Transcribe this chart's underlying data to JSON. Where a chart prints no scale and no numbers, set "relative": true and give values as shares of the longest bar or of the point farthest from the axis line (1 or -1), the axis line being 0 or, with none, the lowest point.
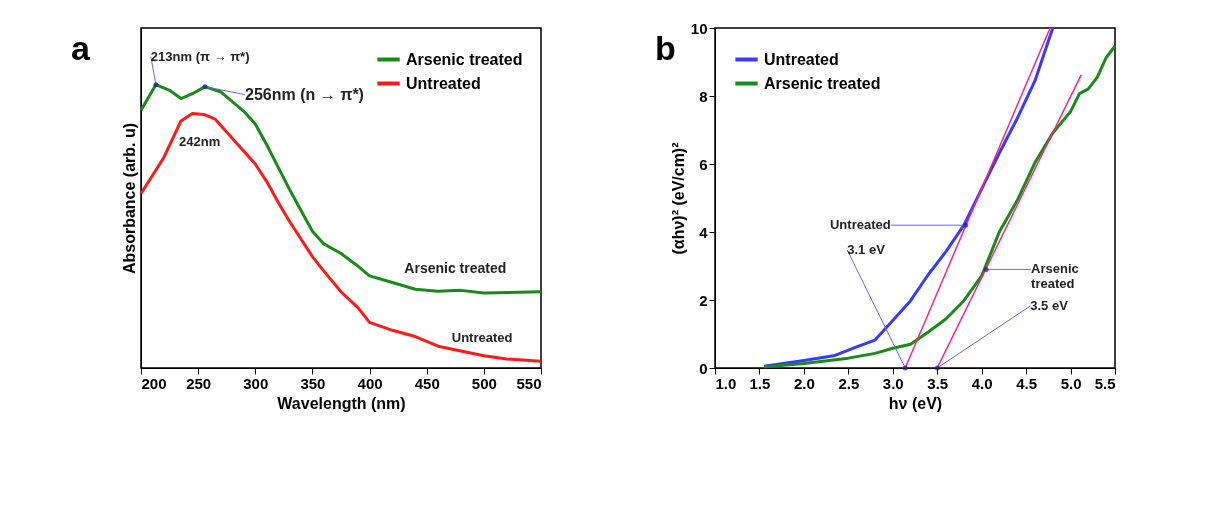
{
  "chart_data": [
    {
      "type": "line",
      "relative": true,
      "xlabel": "Wavelength (nm)",
      "ylabel": "Absorbance (arb. u)",
      "xlim": [
        200,
        550
      ],
      "xticks": [
        200,
        250,
        300,
        350,
        400,
        450,
        500,
        550
      ],
      "legend": "top right",
      "grid": false,
      "series": [
        {
          "name": "Arsenic treated",
          "color": "#1a8a1a",
          "x": [
            200,
            213,
            225,
            235,
            245,
            256,
            270,
            290,
            300,
            310,
            320,
            330,
            340,
            350,
            360,
            375,
            390,
            400,
            420,
            440,
            460,
            480,
            500,
            550
          ],
          "values": [
            0.91,
            1.0,
            0.98,
            0.951,
            0.968,
            0.993,
            0.974,
            0.906,
            0.861,
            0.788,
            0.709,
            0.63,
            0.556,
            0.483,
            0.438,
            0.404,
            0.359,
            0.325,
            0.302,
            0.278,
            0.271,
            0.274,
            0.265,
            0.269
          ]
        },
        {
          "name": "Untreated",
          "color": "#ff1a1a",
          "x": [
            200,
            220,
            235,
            245,
            255,
            265,
            280,
            300,
            310,
            320,
            330,
            350,
            360,
            375,
            390,
            400,
            420,
            440,
            460,
            480,
            500,
            520,
            550
          ],
          "values": [
            0.616,
            0.743,
            0.872,
            0.898,
            0.895,
            0.878,
            0.81,
            0.72,
            0.658,
            0.585,
            0.517,
            0.393,
            0.342,
            0.269,
            0.212,
            0.161,
            0.133,
            0.111,
            0.077,
            0.06,
            0.043,
            0.032,
            0.024
          ]
        }
      ],
      "annotations": [
        "a",
        {
          "text": "213nm (π → π*)",
          "x": 213,
          "y": 1.0
        },
        {
          "text": "256nm (n → π*)",
          "x": 256,
          "y": 0.993
        },
        {
          "text": "242nm",
          "x": 242,
          "y": 0.898
        },
        {
          "text": "Arsenic treated",
          "x": 475,
          "y": 0.272
        },
        {
          "text": "Untreated",
          "x": 525,
          "y": 0.035
        }
      ]
    },
    {
      "type": "line",
      "xlabel": "hν (eV)",
      "ylabel": "(αhν)² (eV/cm)²",
      "xlim": [
        1.0,
        5.5
      ],
      "xticks": [
        {
          "value": 1,
          "label": "1.0"
        },
        1.5,
        {
          "value": 2,
          "label": "2.0"
        },
        2.5,
        {
          "value": 3,
          "label": "3.0"
        },
        3.5,
        {
          "value": 4,
          "label": "4.0"
        },
        4.5,
        {
          "value": 5,
          "label": "5.0"
        },
        5.5
      ],
      "ylim": [
        0,
        10
      ],
      "yticks": [
        0,
        2,
        4,
        6,
        8,
        10
      ],
      "legend": "top left",
      "grid": false,
      "series": [
        {
          "name": "Untreated",
          "color": "#3a3aff",
          "x": [
            1.55,
            2.0,
            2.35,
            2.6,
            2.8,
            3.0,
            3.2,
            3.4,
            3.6,
            3.8,
            4.0,
            4.2,
            4.4,
            4.6,
            4.8
          ],
          "values": [
            0.05,
            0.22,
            0.37,
            0.63,
            0.82,
            1.4,
            1.98,
            2.75,
            3.43,
            4.2,
            5.27,
            6.33,
            7.34,
            8.45,
            10.0
          ]
        },
        {
          "name": "Arsenic treated",
          "color": "#1a8a1a",
          "x": [
            1.55,
            2.0,
            2.5,
            2.8,
            3.0,
            3.2,
            3.4,
            3.6,
            3.8,
            4.0,
            4.2,
            4.4,
            4.6,
            4.8,
            5.0,
            5.1,
            5.2,
            5.3,
            5.4,
            5.5
          ],
          "values": [
            0.03,
            0.13,
            0.29,
            0.43,
            0.58,
            0.7,
            1.06,
            1.45,
            1.98,
            2.71,
            4.01,
            4.93,
            6.04,
            6.91,
            7.54,
            8.07,
            8.21,
            8.55,
            9.13,
            9.47
          ]
        },
        {
          "color": "#ff2080",
          "x": [
            3.14,
            4.77
          ],
          "values": [
            0,
            10
          ]
        },
        {
          "color": "#ff2080",
          "x": [
            3.5,
            5.12
          ],
          "values": [
            0,
            8.62
          ]
        }
      ],
      "annotations": [
        "b",
        {
          "text": "Untreated",
          "x": 3.82,
          "y": 4.2
        },
        {
          "text": "3.1 eV",
          "x": 3.14,
          "y": 0
        },
        {
          "text": "Arsenic treated",
          "x": 4.05,
          "y": 2.9
        },
        {
          "text": "3.5 eV",
          "x": 3.5,
          "y": 0
        }
      ]
    }
  ]
}
